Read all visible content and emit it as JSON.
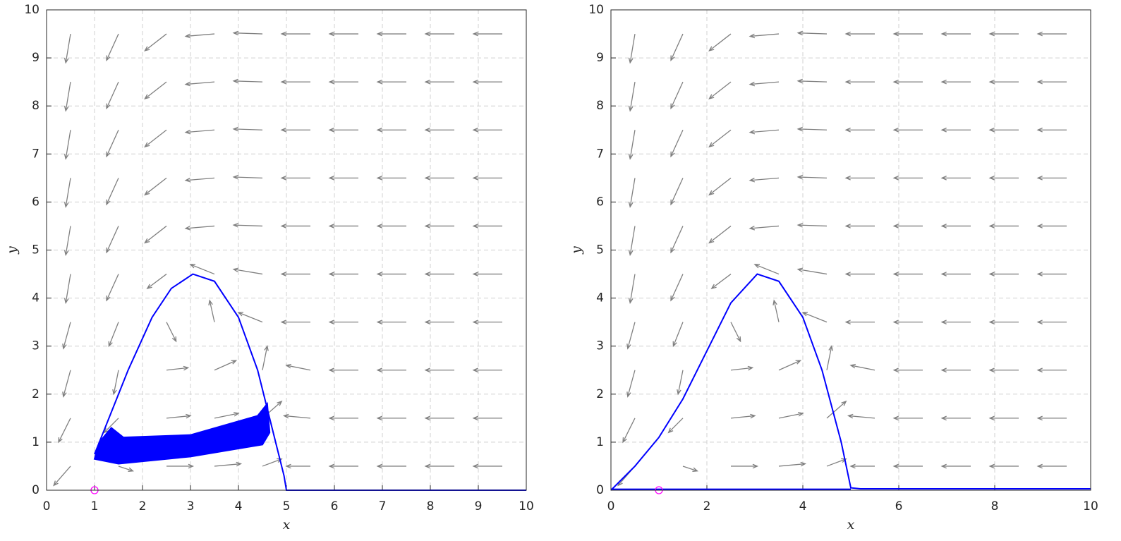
{
  "chart_data": [
    {
      "type": "phase",
      "xlabel": "x",
      "ylabel": "y",
      "xlim": [
        0,
        10
      ],
      "ylim": [
        0,
        10
      ],
      "xticks": [
        0,
        1,
        2,
        3,
        4,
        5,
        6,
        7,
        8,
        9,
        10
      ],
      "yticks": [
        0,
        1,
        2,
        3,
        4,
        5,
        6,
        7,
        8,
        9,
        10
      ],
      "grid": true,
      "quiver": {
        "color": "#808080",
        "x": [
          0.5,
          1.5,
          2.5,
          3.5,
          4.5,
          5.5,
          6.5,
          7.5,
          8.5,
          9.5
        ],
        "y": [
          0.5,
          1.5,
          2.5,
          3.5,
          4.5,
          5.5,
          6.5,
          7.5,
          8.5,
          9.5
        ],
        "u": [
          [
            -0.35,
            0.3,
            0.55,
            0.55,
            0.4,
            -0.5,
            -0.6,
            -0.6,
            -0.6,
            -0.6
          ],
          [
            -0.25,
            -0.3,
            0.5,
            0.5,
            0.4,
            -0.55,
            -0.6,
            -0.6,
            -0.6,
            -0.6
          ],
          [
            -0.15,
            -0.1,
            0.45,
            0.45,
            0.1,
            -0.5,
            -0.6,
            -0.6,
            -0.6,
            -0.6
          ],
          [
            -0.15,
            -0.2,
            0.2,
            -0.1,
            -0.5,
            -0.6,
            -0.6,
            -0.6,
            -0.6,
            -0.6
          ],
          [
            -0.1,
            -0.25,
            -0.4,
            -0.5,
            -0.6,
            -0.6,
            -0.6,
            -0.6,
            -0.6,
            -0.6
          ],
          [
            -0.1,
            -0.25,
            -0.45,
            -0.6,
            -0.6,
            -0.6,
            -0.6,
            -0.6,
            -0.6,
            -0.6
          ],
          [
            -0.1,
            -0.25,
            -0.45,
            -0.6,
            -0.6,
            -0.6,
            -0.6,
            -0.6,
            -0.6,
            -0.6
          ],
          [
            -0.1,
            -0.25,
            -0.45,
            -0.6,
            -0.6,
            -0.6,
            -0.6,
            -0.6,
            -0.6,
            -0.6
          ],
          [
            -0.1,
            -0.25,
            -0.45,
            -0.6,
            -0.6,
            -0.6,
            -0.6,
            -0.6,
            -0.6,
            -0.6
          ],
          [
            -0.1,
            -0.25,
            -0.45,
            -0.6,
            -0.6,
            -0.6,
            -0.6,
            -0.6,
            -0.6,
            -0.6
          ]
        ],
        "v": [
          [
            -0.4,
            -0.1,
            0,
            0.05,
            0.15,
            0,
            0,
            0,
            0,
            0
          ],
          [
            -0.5,
            -0.3,
            0.05,
            0.1,
            0.35,
            0.05,
            0,
            0,
            0,
            0
          ],
          [
            -0.55,
            -0.5,
            0.05,
            0.2,
            0.5,
            0.1,
            0,
            0,
            0,
            0
          ],
          [
            -0.55,
            -0.5,
            -0.4,
            0.45,
            0.2,
            0,
            0,
            0,
            0,
            0
          ],
          [
            -0.6,
            -0.55,
            -0.3,
            0.2,
            0.1,
            0,
            0,
            0,
            0,
            0
          ],
          [
            -0.6,
            -0.55,
            -0.35,
            -0.05,
            0.02,
            0,
            0,
            0,
            0,
            0
          ],
          [
            -0.6,
            -0.55,
            -0.35,
            -0.05,
            0.02,
            0,
            0,
            0,
            0,
            0
          ],
          [
            -0.6,
            -0.55,
            -0.35,
            -0.05,
            0.02,
            0,
            0,
            0,
            0,
            0
          ],
          [
            -0.6,
            -0.55,
            -0.35,
            -0.05,
            0.02,
            0,
            0,
            0,
            0,
            0
          ],
          [
            -0.6,
            -0.55,
            -0.35,
            -0.05,
            0.02,
            0,
            0,
            0,
            0,
            0
          ]
        ]
      },
      "series": [
        {
          "color": "#0000ff",
          "x": [
            1.0,
            1.3,
            1.7,
            2.2,
            2.6,
            3.05,
            3.5,
            4.0,
            4.4,
            4.7,
            4.95,
            5.0,
            10.0
          ],
          "y": [
            0.75,
            1.5,
            2.5,
            3.6,
            4.2,
            4.5,
            4.35,
            3.6,
            2.5,
            1.3,
            0.3,
            0,
            0
          ]
        },
        {
          "color": "#0000ff",
          "fill": true,
          "x": [
            1.35,
            1.6,
            3.0,
            4.4,
            4.6,
            4.65,
            4.5,
            3.0,
            1.5,
            1.0,
            1.1,
            1.35
          ],
          "y": [
            1.3,
            1.1,
            1.15,
            1.55,
            1.8,
            1.2,
            0.95,
            0.7,
            0.55,
            0.65,
            1.0,
            1.3
          ]
        }
      ],
      "markers": [
        {
          "x": 1,
          "y": 0,
          "color": "#ff00ff"
        }
      ]
    },
    {
      "type": "phase",
      "xlabel": "x",
      "ylabel": "y",
      "xlim": [
        0,
        10
      ],
      "ylim": [
        0,
        10
      ],
      "xticks": [
        0,
        2,
        4,
        6,
        8,
        10
      ],
      "yticks": [
        0,
        1,
        2,
        3,
        4,
        5,
        6,
        7,
        8,
        9,
        10
      ],
      "grid": true,
      "quiver": {
        "color": "#808080",
        "x": [
          0.5,
          1.5,
          2.5,
          3.5,
          4.5,
          5.5,
          6.5,
          7.5,
          8.5,
          9.5
        ],
        "y": [
          0.5,
          1.5,
          2.5,
          3.5,
          4.5,
          5.5,
          6.5,
          7.5,
          8.5,
          9.5
        ],
        "u": [
          [
            -0.35,
            0.3,
            0.55,
            0.55,
            0.4,
            -0.5,
            -0.6,
            -0.6,
            -0.6,
            -0.6
          ],
          [
            -0.25,
            -0.3,
            0.5,
            0.5,
            0.4,
            -0.55,
            -0.6,
            -0.6,
            -0.6,
            -0.6
          ],
          [
            -0.15,
            -0.1,
            0.45,
            0.45,
            0.1,
            -0.5,
            -0.6,
            -0.6,
            -0.6,
            -0.6
          ],
          [
            -0.15,
            -0.2,
            0.2,
            -0.1,
            -0.5,
            -0.6,
            -0.6,
            -0.6,
            -0.6,
            -0.6
          ],
          [
            -0.1,
            -0.25,
            -0.4,
            -0.5,
            -0.6,
            -0.6,
            -0.6,
            -0.6,
            -0.6,
            -0.6
          ],
          [
            -0.1,
            -0.25,
            -0.45,
            -0.6,
            -0.6,
            -0.6,
            -0.6,
            -0.6,
            -0.6,
            -0.6
          ],
          [
            -0.1,
            -0.25,
            -0.45,
            -0.6,
            -0.6,
            -0.6,
            -0.6,
            -0.6,
            -0.6,
            -0.6
          ],
          [
            -0.1,
            -0.25,
            -0.45,
            -0.6,
            -0.6,
            -0.6,
            -0.6,
            -0.6,
            -0.6,
            -0.6
          ],
          [
            -0.1,
            -0.25,
            -0.45,
            -0.6,
            -0.6,
            -0.6,
            -0.6,
            -0.6,
            -0.6,
            -0.6
          ],
          [
            -0.1,
            -0.25,
            -0.45,
            -0.6,
            -0.6,
            -0.6,
            -0.6,
            -0.6,
            -0.6,
            -0.6
          ]
        ],
        "v": [
          [
            -0.4,
            -0.1,
            0,
            0.05,
            0.15,
            0,
            0,
            0,
            0,
            0
          ],
          [
            -0.5,
            -0.3,
            0.05,
            0.1,
            0.35,
            0.05,
            0,
            0,
            0,
            0
          ],
          [
            -0.55,
            -0.5,
            0.05,
            0.2,
            0.5,
            0.1,
            0,
            0,
            0,
            0
          ],
          [
            -0.55,
            -0.5,
            -0.4,
            0.45,
            0.2,
            0,
            0,
            0,
            0,
            0
          ],
          [
            -0.6,
            -0.55,
            -0.3,
            0.2,
            0.1,
            0,
            0,
            0,
            0,
            0
          ],
          [
            -0.6,
            -0.55,
            -0.35,
            -0.05,
            0.02,
            0,
            0,
            0,
            0,
            0
          ],
          [
            -0.6,
            -0.55,
            -0.35,
            -0.05,
            0.02,
            0,
            0,
            0,
            0,
            0
          ],
          [
            -0.6,
            -0.55,
            -0.35,
            -0.05,
            0.02,
            0,
            0,
            0,
            0,
            0
          ],
          [
            -0.6,
            -0.55,
            -0.35,
            -0.05,
            0.02,
            0,
            0,
            0,
            0,
            0
          ],
          [
            -0.6,
            -0.55,
            -0.35,
            -0.05,
            0.02,
            0,
            0,
            0,
            0,
            0
          ]
        ]
      },
      "series": [
        {
          "color": "#0000ff",
          "x": [
            0,
            0.5,
            1.0,
            1.5,
            2.0,
            2.5,
            3.05,
            3.5,
            4.0,
            4.4,
            4.8,
            5.0,
            5.2,
            10.0
          ],
          "y": [
            0,
            0.5,
            1.1,
            1.9,
            2.9,
            3.9,
            4.5,
            4.35,
            3.6,
            2.5,
            1.0,
            0.05,
            0.03,
            0.03
          ]
        },
        {
          "color": "#0000ff",
          "x": [
            0,
            5.0
          ],
          "y": [
            0.02,
            0.02
          ]
        }
      ],
      "markers": [
        {
          "x": 1,
          "y": 0,
          "color": "#ff00ff"
        }
      ]
    }
  ]
}
